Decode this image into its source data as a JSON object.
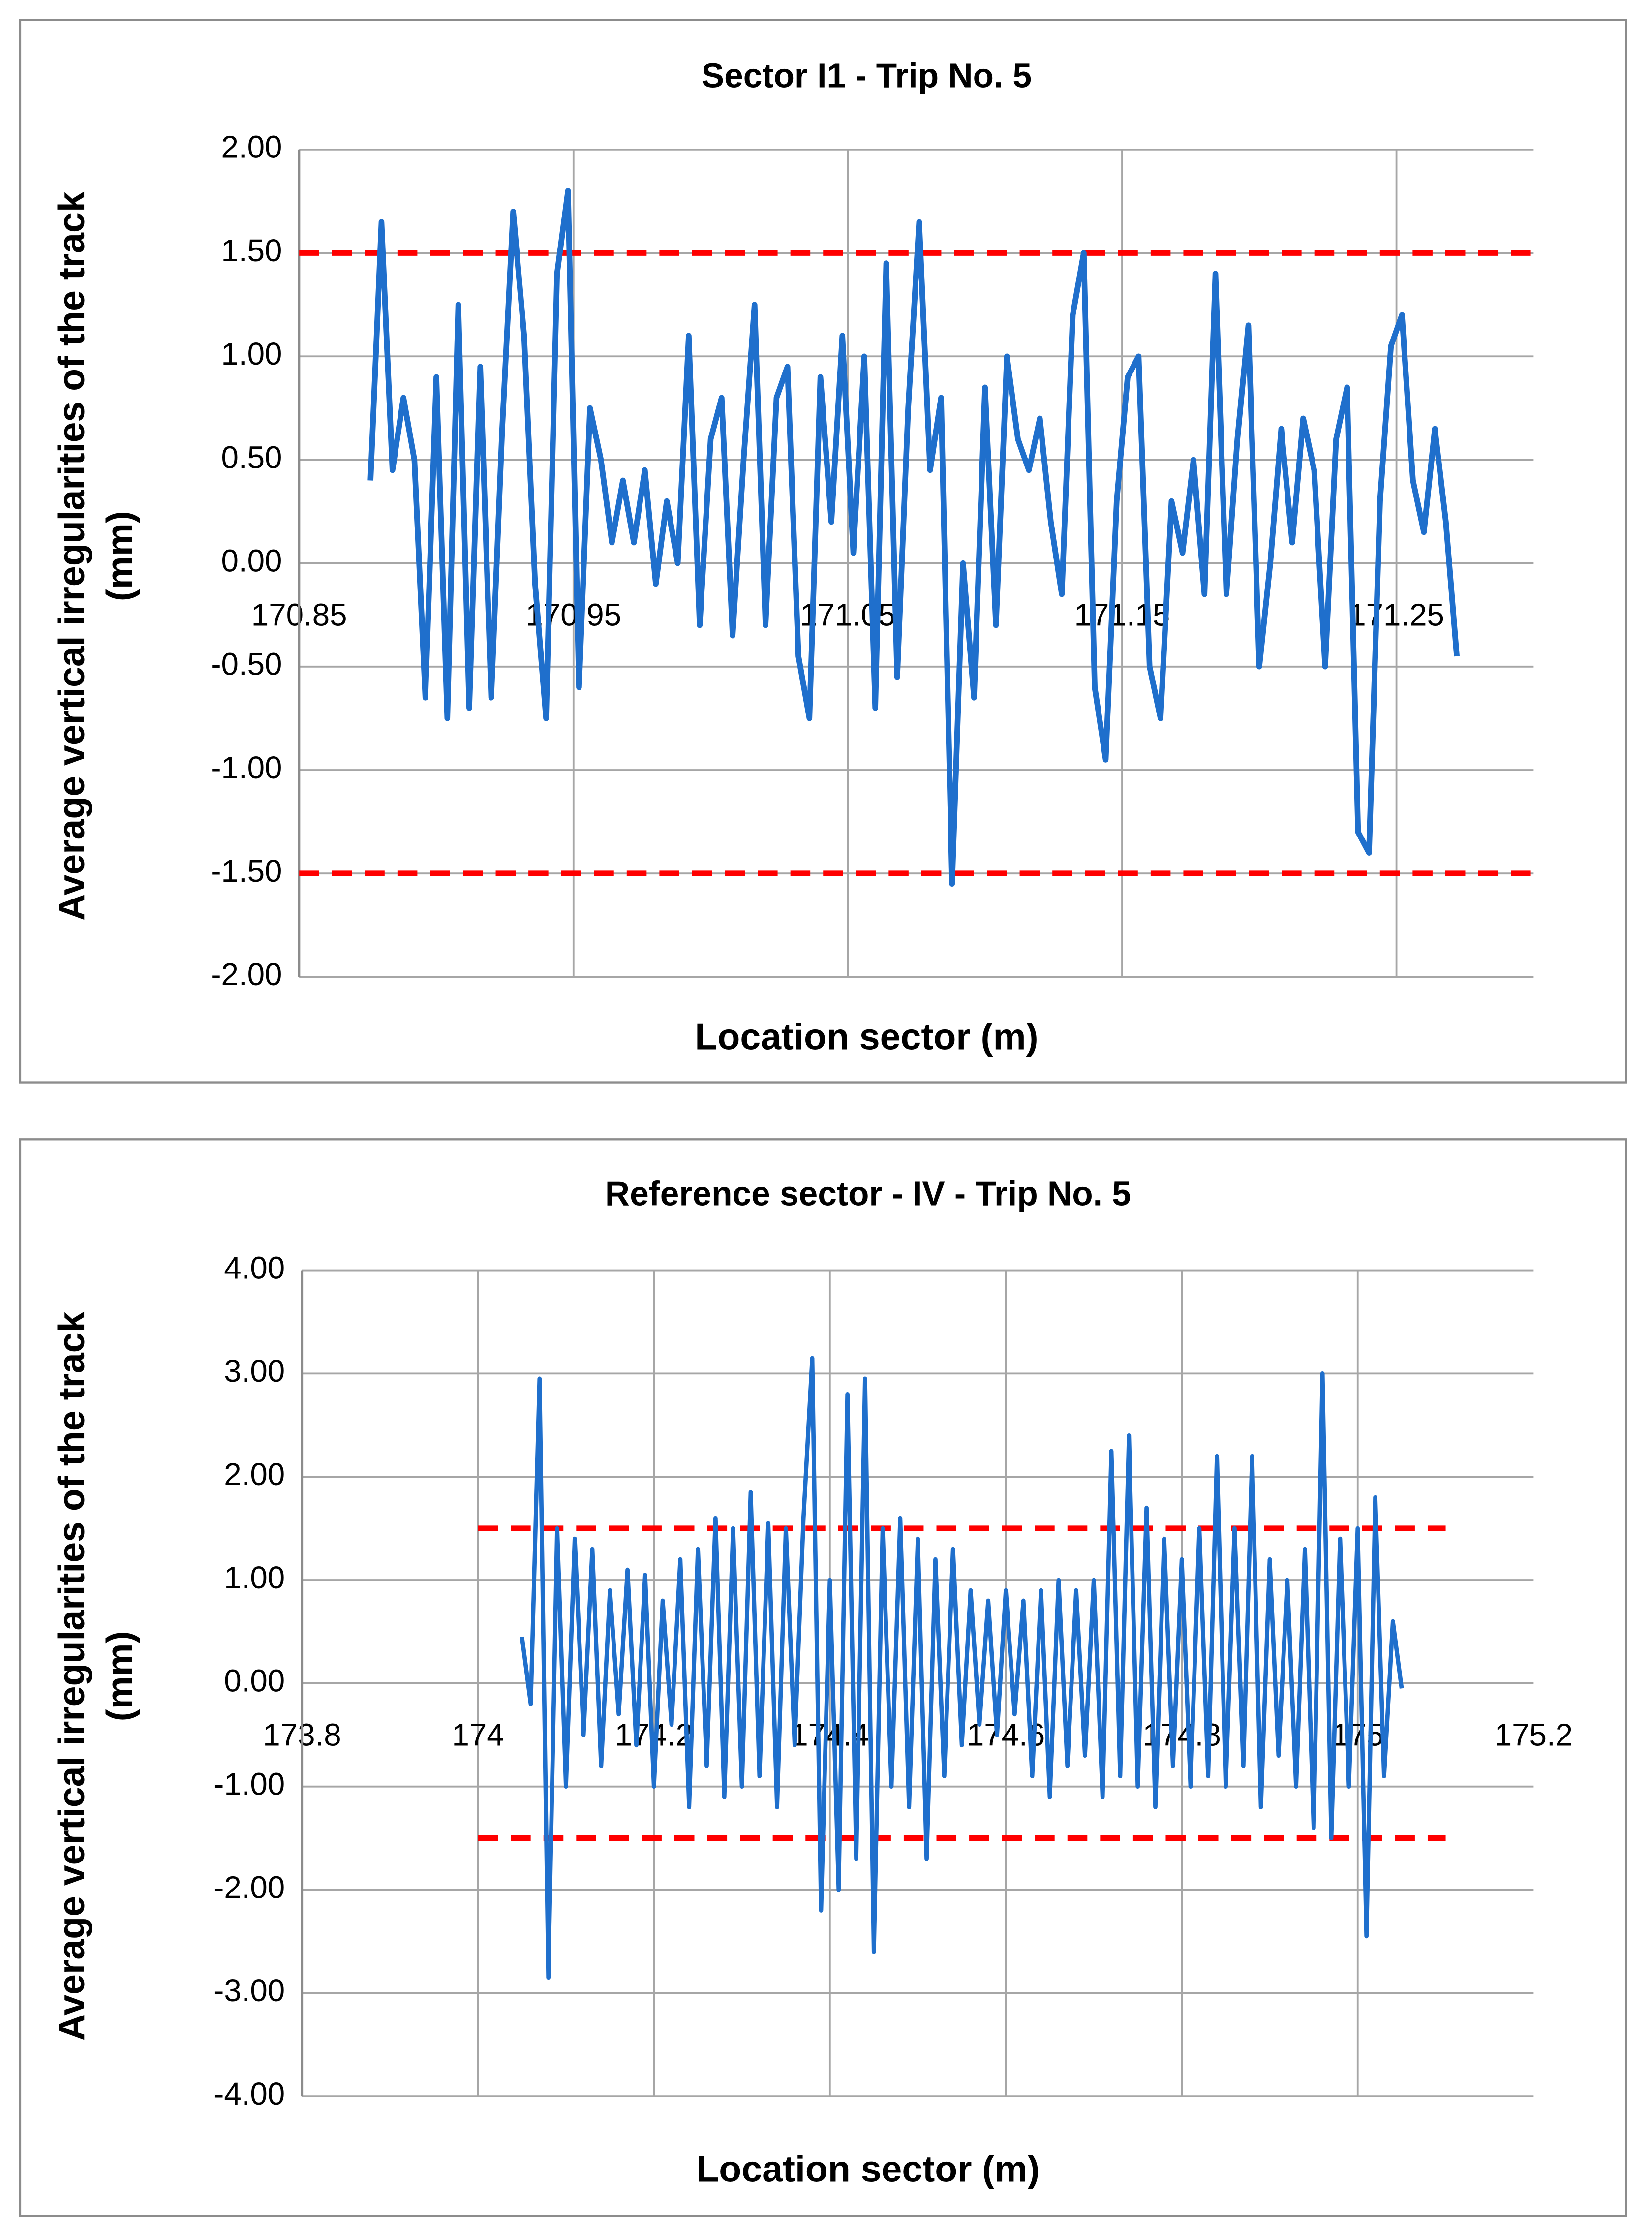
{
  "chart_data": [
    {
      "type": "line",
      "title": "Sector I1 - Trip No. 5",
      "xlabel": "Location sector (m)",
      "ylabel": [
        "Average vertical irregularities of the track",
        "(mm)"
      ],
      "xlim": [
        170.85,
        171.3
      ],
      "xticks": [
        170.85,
        170.95,
        171.05,
        171.15,
        171.25
      ],
      "ylim": [
        -2,
        2
      ],
      "yticks": [
        {
          "value": -2,
          "label": "-2.00"
        },
        {
          "value": -1.5,
          "label": "-1.50"
        },
        {
          "value": -1,
          "label": "-1.00"
        },
        {
          "value": -0.5,
          "label": "-0.50"
        },
        {
          "value": 0,
          "label": "0.00"
        },
        {
          "value": 0.5,
          "label": "0.50"
        },
        {
          "value": 1,
          "label": "1.00"
        },
        {
          "value": 1.5,
          "label": "1.50"
        },
        {
          "value": 2,
          "label": "2.00"
        }
      ],
      "grid": true,
      "color": "#1f6fcc",
      "thresholds": {
        "values": [
          1.5,
          -1.5
        ],
        "xrange": [
          170.85,
          171.3
        ],
        "color": "#ff0000"
      },
      "x": [
        170.876,
        170.88,
        170.884,
        170.888,
        170.892,
        170.896,
        170.9,
        170.904,
        170.908,
        170.912,
        170.916,
        170.92,
        170.924,
        170.928,
        170.932,
        170.936,
        170.94,
        170.944,
        170.948,
        170.952,
        170.956,
        170.96,
        170.964,
        170.968,
        170.972,
        170.976,
        170.98,
        170.984,
        170.988,
        170.992,
        170.996,
        171.0,
        171.004,
        171.008,
        171.012,
        171.016,
        171.02,
        171.024,
        171.028,
        171.032,
        171.036,
        171.04,
        171.044,
        171.048,
        171.052,
        171.056,
        171.06,
        171.064,
        171.068,
        171.072,
        171.076,
        171.08,
        171.084,
        171.088,
        171.092,
        171.096,
        171.1,
        171.104,
        171.108,
        171.112,
        171.116,
        171.12,
        171.124,
        171.128,
        171.132,
        171.136,
        171.14,
        171.144,
        171.148,
        171.152,
        171.156,
        171.16,
        171.164,
        171.168,
        171.172,
        171.176,
        171.18,
        171.184,
        171.188,
        171.192,
        171.196,
        171.2,
        171.204,
        171.208,
        171.212,
        171.216,
        171.22,
        171.224,
        171.228,
        171.232,
        171.236,
        171.24,
        171.244,
        171.248,
        171.252,
        171.256,
        171.26,
        171.264,
        171.268,
        171.272
      ],
      "values": [
        0.4,
        1.65,
        0.45,
        0.8,
        0.5,
        -0.65,
        0.9,
        -0.75,
        1.25,
        -0.7,
        0.95,
        -0.65,
        0.65,
        1.7,
        1.1,
        -0.1,
        -0.75,
        1.4,
        1.8,
        -0.6,
        0.75,
        0.5,
        0.1,
        0.4,
        0.1,
        0.45,
        -0.1,
        0.3,
        0.0,
        1.1,
        -0.3,
        0.6,
        0.8,
        -0.35,
        0.5,
        1.25,
        -0.3,
        0.8,
        0.95,
        -0.45,
        -0.75,
        0.9,
        0.2,
        1.1,
        0.05,
        1.0,
        -0.7,
        1.45,
        -0.55,
        0.75,
        1.65,
        0.45,
        0.8,
        -1.55,
        0.0,
        -0.65,
        0.85,
        -0.3,
        1.0,
        0.6,
        0.45,
        0.7,
        0.2,
        -0.15,
        1.2,
        1.5,
        -0.6,
        -0.95,
        0.3,
        0.9,
        1.0,
        -0.5,
        -0.75,
        0.3,
        0.05,
        0.5,
        -0.15,
        1.4,
        -0.15,
        0.6,
        1.15,
        -0.5,
        0.0,
        0.65,
        0.1,
        0.7,
        0.45,
        -0.5,
        0.6,
        0.85,
        -1.3,
        -1.4,
        0.3,
        1.05,
        1.2,
        0.4,
        0.15,
        0.65,
        0.2,
        -0.45
      ]
    },
    {
      "type": "line",
      "title": "Reference sector - IV - Trip No. 5",
      "xlabel": "Location sector (m)",
      "ylabel": [
        "Average vertical irregularities of the track",
        "(mm)"
      ],
      "xlim": [
        173.8,
        175.2
      ],
      "xticks": [
        173.8,
        174,
        174.2,
        174.4,
        174.6,
        174.8,
        175,
        175.2
      ],
      "ylim": [
        -4,
        4
      ],
      "yticks": [
        {
          "value": -4,
          "label": "-4.00"
        },
        {
          "value": -3,
          "label": "-3.00"
        },
        {
          "value": -2,
          "label": "-2.00"
        },
        {
          "value": -1,
          "label": "-1.00"
        },
        {
          "value": 0,
          "label": "0.00"
        },
        {
          "value": 1,
          "label": "1.00"
        },
        {
          "value": 2,
          "label": "2.00"
        },
        {
          "value": 3,
          "label": "3.00"
        },
        {
          "value": 4,
          "label": "4.00"
        }
      ],
      "grid": true,
      "color": "#1f6fcc",
      "thresholds": {
        "values": [
          1.5,
          -1.5
        ],
        "xrange": [
          174.0,
          175.1
        ],
        "color": "#ff0000"
      },
      "x": [
        174.05,
        174.06,
        174.07,
        174.08,
        174.09,
        174.1,
        174.11,
        174.12,
        174.13,
        174.14,
        174.15,
        174.16,
        174.17,
        174.18,
        174.19,
        174.2,
        174.21,
        174.22,
        174.23,
        174.24,
        174.25,
        174.26,
        174.27,
        174.28,
        174.29,
        174.3,
        174.31,
        174.32,
        174.33,
        174.34,
        174.35,
        174.36,
        174.37,
        174.38,
        174.39,
        174.4,
        174.41,
        174.42,
        174.43,
        174.44,
        174.45,
        174.46,
        174.47,
        174.48,
        174.49,
        174.5,
        174.51,
        174.52,
        174.53,
        174.54,
        174.55,
        174.56,
        174.57,
        174.58,
        174.59,
        174.6,
        174.61,
        174.62,
        174.63,
        174.64,
        174.65,
        174.66,
        174.67,
        174.68,
        174.69,
        174.7,
        174.71,
        174.72,
        174.73,
        174.74,
        174.75,
        174.76,
        174.77,
        174.78,
        174.79,
        174.8,
        174.81,
        174.82,
        174.83,
        174.84,
        174.85,
        174.86,
        174.87,
        174.88,
        174.89,
        174.9,
        174.91,
        174.92,
        174.93,
        174.94,
        174.95,
        174.96,
        174.97,
        174.98,
        174.99,
        175.0,
        175.01,
        175.02,
        175.03,
        175.04,
        175.05
      ],
      "values": [
        0.45,
        -0.2,
        2.95,
        -2.85,
        1.5,
        -1.0,
        1.4,
        -0.5,
        1.3,
        -0.8,
        0.9,
        -0.3,
        1.1,
        -0.6,
        1.05,
        -1.0,
        0.8,
        -0.4,
        1.2,
        -1.2,
        1.3,
        -0.8,
        1.6,
        -1.1,
        1.5,
        -1.0,
        1.85,
        -0.9,
        1.55,
        -1.2,
        1.5,
        -0.6,
        1.6,
        3.15,
        -2.2,
        1.0,
        -2.0,
        2.8,
        -1.7,
        2.95,
        -2.6,
        1.5,
        -1.0,
        1.6,
        -1.2,
        1.4,
        -1.7,
        1.2,
        -0.9,
        1.3,
        -0.6,
        0.9,
        -0.4,
        0.8,
        -0.5,
        0.9,
        -0.3,
        0.8,
        -0.9,
        0.9,
        -1.1,
        1.0,
        -0.8,
        0.9,
        -0.7,
        1.0,
        -1.1,
        2.25,
        -0.9,
        2.4,
        -1.0,
        1.7,
        -1.2,
        1.4,
        -0.8,
        1.2,
        -1.0,
        1.5,
        -0.9,
        2.2,
        -1.0,
        1.5,
        -0.8,
        2.2,
        -1.2,
        1.2,
        -0.7,
        1.0,
        -1.0,
        1.3,
        -1.4,
        3.0,
        -1.5,
        1.4,
        -1.0,
        1.5,
        -2.45,
        1.8,
        -0.9,
        0.6,
        -0.05
      ]
    }
  ]
}
